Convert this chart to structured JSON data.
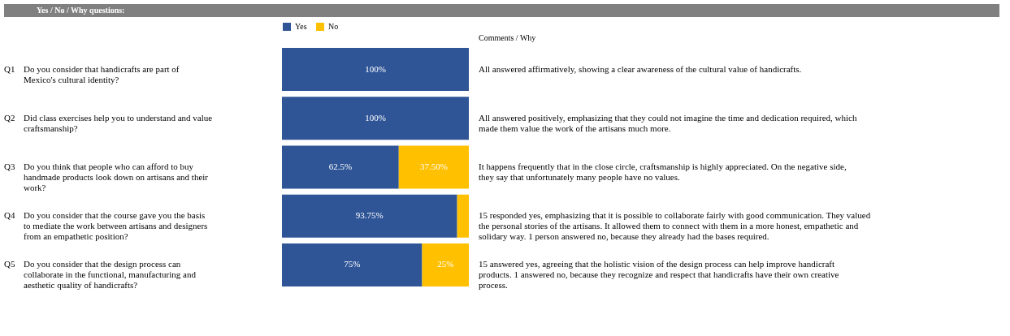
{
  "chart_data": {
    "type": "bar",
    "orientation": "horizontal",
    "stacked": true,
    "title": "Yes / No / Why questions:",
    "categories": [
      "Q1",
      "Q2",
      "Q3",
      "Q4",
      "Q5"
    ],
    "series": [
      {
        "name": "Yes",
        "color": "#2f5597",
        "values": [
          100,
          100,
          62.5,
          93.75,
          75
        ],
        "value_labels": [
          "100%",
          "100%",
          "62.5%",
          "93.75%",
          "75%"
        ]
      },
      {
        "name": "No",
        "color": "#ffc000",
        "values": [
          0,
          0,
          37.5,
          6.25,
          25
        ],
        "value_labels": [
          null,
          null,
          "37.50%",
          null,
          "25%"
        ]
      }
    ],
    "xlim": [
      0,
      100
    ],
    "legend": "top",
    "annotations": [
      "Comments / Why",
      "Do you consider that handicrafts are part of Mexico's cultural identity?",
      "All answered affirmatively, showing a clear awareness of the cultural value of handicrafts.",
      "Did class exercises help you to understand and value craftsmanship?",
      "All answered positively, emphasizing that they could not imagine the time and dedication required, which made them value the work of the artisans much more.",
      "Do you think that people who can afford to buy handmade products look down on artisans and their work?",
      "It happens frequently that in the close circle, craftsmanship is highly appreciated. On the negative side, they say that unfortunately many people have no values.",
      "Do you consider that the course gave you the basis to mediate the work between artisans and designers from an empathetic position?",
      "15 responded yes, emphasizing that it is possible to collaborate fairly with good communication. They valued the personal stories of the artisans. It allowed them to connect with them in a more honest, empathetic and solidary way. 1 person answered no, because they already had the bases required.",
      "Do you consider that the design process can collaborate in the functional, manufacturing and aesthetic quality of handicrafts?",
      "15 answered yes, agreeing that the holistic vision of the design process can help improve handicraft products. 1 answered no, because they recognize and respect that handicrafts have their own creative process."
    ]
  }
}
